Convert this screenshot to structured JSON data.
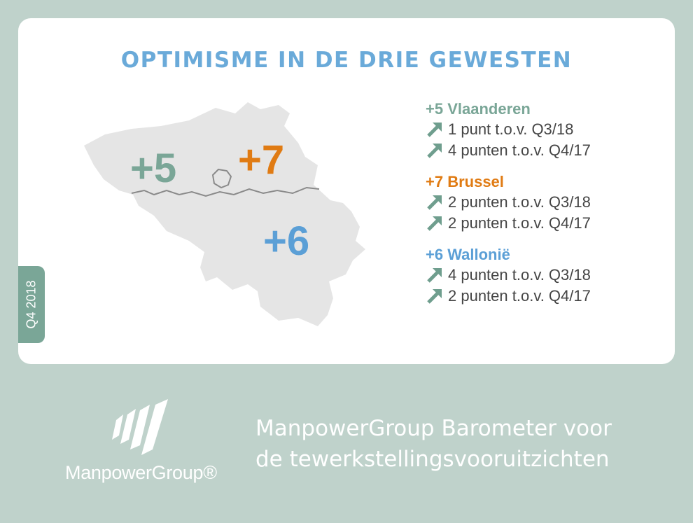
{
  "title": "OPTIMISME IN DE DRIE GEWESTEN",
  "quarter_tab": "Q4 2018",
  "colors": {
    "background": "#bfd2cb",
    "card": "#ffffff",
    "title": "#6aaad9",
    "vlaanderen": "#7aa697",
    "brussel": "#e07b13",
    "wallonie": "#5b9fd6",
    "map_fill": "#e5e5e5",
    "arrow": "#6f9e8e"
  },
  "map": {
    "vlaanderen_value": "+5",
    "brussel_value": "+7",
    "wallonie_value": "+6"
  },
  "regions": [
    {
      "heading": "+5 Vlaanderen",
      "lines": [
        "1 punt t.o.v. Q3/18",
        "4 punten t.o.v. Q4/17"
      ]
    },
    {
      "heading": "+7 Brussel",
      "lines": [
        "2 punten t.o.v. Q3/18",
        "2 punten t.o.v. Q4/17"
      ]
    },
    {
      "heading": "+6 Wallonië",
      "lines": [
        "4 punten t.o.v. Q3/18",
        "2 punten t.o.v. Q4/17"
      ]
    }
  ],
  "icons": [
    "trend-up-arrow-icon",
    "manpowergroup-logo-icon"
  ],
  "footer": {
    "logo_text": "ManpowerGroup®",
    "tagline_line1": "ManpowerGroup Barometer voor",
    "tagline_line2": "de tewerkstellingsvooruitzichten"
  }
}
